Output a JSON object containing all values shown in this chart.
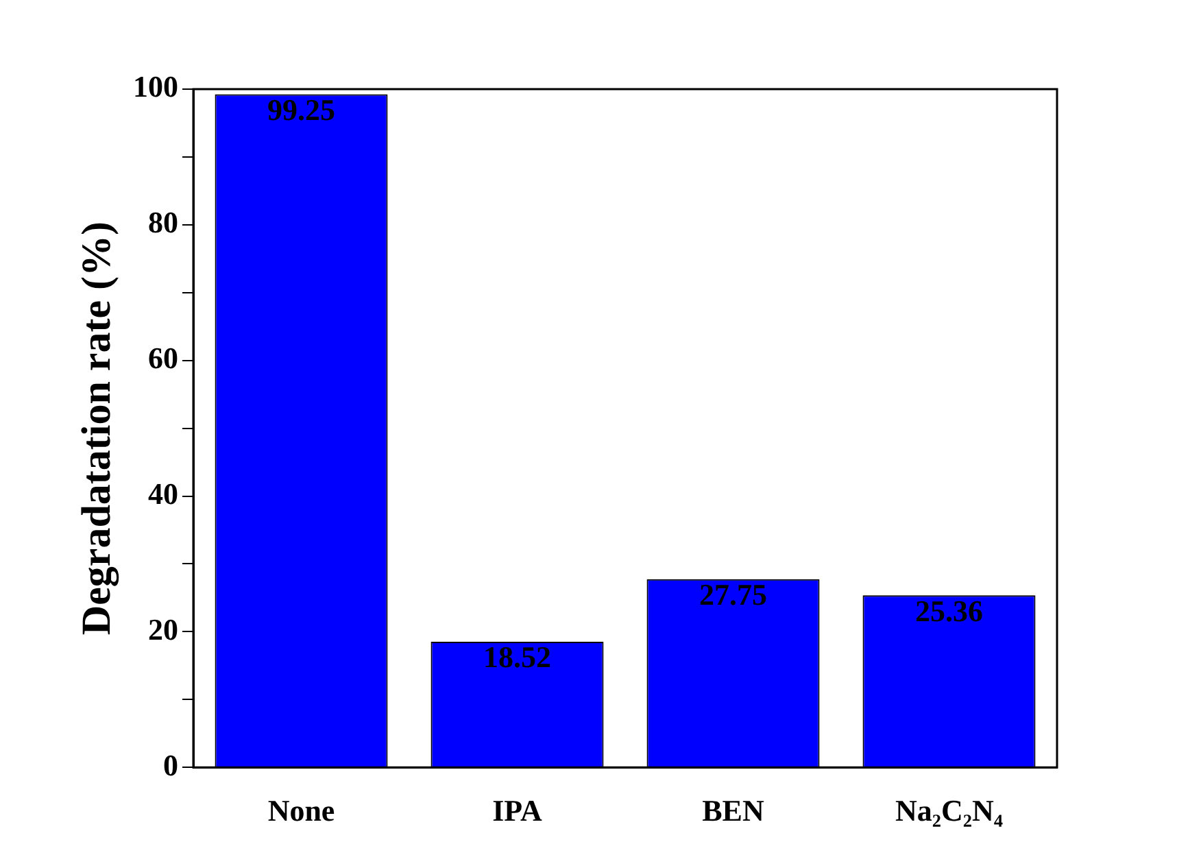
{
  "chart_data": {
    "type": "bar",
    "ylabel": "Degradatation rate (%)",
    "categories": [
      "None",
      "IPA",
      "BEN",
      "Na₂C₂N₄"
    ],
    "values": [
      99.25,
      18.52,
      27.75,
      25.36
    ],
    "color": "#0000ff",
    "ylim": [
      0,
      100
    ],
    "yticks": [
      0,
      {
        "value": 10,
        "label": null
      },
      20,
      {
        "value": 30,
        "label": null
      },
      40,
      {
        "value": 50,
        "label": null
      },
      60,
      {
        "value": 70,
        "label": null
      },
      80,
      {
        "value": 90,
        "label": null
      },
      100
    ],
    "data_labels": true,
    "grid": false,
    "legend": false
  }
}
